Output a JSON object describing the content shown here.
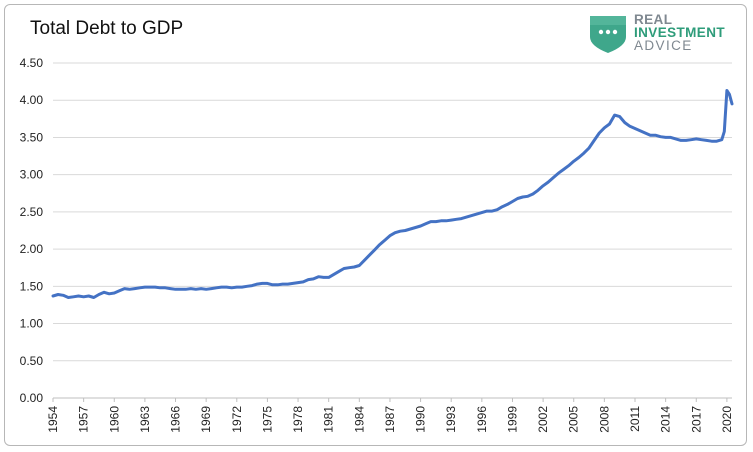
{
  "chart_data": {
    "type": "line",
    "title": "Total Debt to GDP",
    "xlabel": "",
    "ylabel": "",
    "ylim": [
      0,
      4.5
    ],
    "xlim": [
      1954,
      2020.5
    ],
    "grid": true,
    "legend": "none",
    "line_color": "#4472c4",
    "y_ticks": [
      "0.00",
      "0.50",
      "1.00",
      "1.50",
      "2.00",
      "2.50",
      "3.00",
      "3.50",
      "4.00",
      "4.50"
    ],
    "x_ticks": [
      "1954",
      "1957",
      "1960",
      "1963",
      "1966",
      "1969",
      "1972",
      "1975",
      "1978",
      "1981",
      "1984",
      "1987",
      "1990",
      "1993",
      "1996",
      "1999",
      "2002",
      "2005",
      "2008",
      "2011",
      "2014",
      "2017",
      "2020"
    ],
    "series": [
      {
        "x": [
          1954,
          1954.5,
          1955,
          1955.5,
          1956,
          1956.5,
          1957,
          1957.5,
          1958,
          1958.5,
          1959,
          1959.5,
          1960,
          1960.5,
          1961,
          1961.5,
          1962,
          1962.5,
          1963,
          1963.5,
          1964,
          1964.5,
          1965,
          1965.5,
          1966,
          1966.5,
          1967,
          1967.5,
          1968,
          1968.5,
          1969,
          1969.5,
          1970,
          1970.5,
          1971,
          1971.5,
          1972,
          1972.5,
          1973,
          1973.5,
          1974,
          1974.5,
          1975,
          1975.5,
          1976,
          1976.5,
          1977,
          1977.5,
          1978,
          1978.5,
          1979,
          1979.5,
          1980,
          1980.5,
          1981,
          1981.5,
          1982,
          1982.5,
          1983,
          1983.5,
          1984,
          1984.5,
          1985,
          1985.5,
          1986,
          1986.5,
          1987,
          1987.5,
          1988,
          1988.5,
          1989,
          1989.5,
          1990,
          1990.5,
          1991,
          1991.5,
          1992,
          1992.5,
          1993,
          1993.5,
          1994,
          1994.5,
          1995,
          1995.5,
          1996,
          1996.5,
          1997,
          1997.5,
          1998,
          1998.5,
          1999,
          1999.5,
          2000,
          2000.5,
          2001,
          2001.5,
          2002,
          2002.5,
          2003,
          2003.5,
          2004,
          2004.5,
          2005,
          2005.5,
          2006,
          2006.5,
          2007,
          2007.5,
          2008,
          2008.5,
          2009,
          2009.5,
          2010,
          2010.5,
          2011,
          2011.5,
          2012,
          2012.5,
          2013,
          2013.5,
          2014,
          2014.5,
          2015,
          2015.5,
          2016,
          2016.5,
          2017,
          2017.5,
          2018,
          2018.5,
          2019,
          2019.5,
          2019.75,
          2020,
          2020.25,
          2020.5
        ],
        "y": [
          1.37,
          1.39,
          1.38,
          1.35,
          1.36,
          1.37,
          1.36,
          1.37,
          1.35,
          1.39,
          1.42,
          1.4,
          1.41,
          1.44,
          1.47,
          1.46,
          1.47,
          1.48,
          1.49,
          1.49,
          1.49,
          1.48,
          1.48,
          1.47,
          1.46,
          1.46,
          1.46,
          1.47,
          1.46,
          1.47,
          1.46,
          1.47,
          1.48,
          1.49,
          1.49,
          1.48,
          1.49,
          1.49,
          1.5,
          1.51,
          1.53,
          1.54,
          1.54,
          1.52,
          1.52,
          1.53,
          1.53,
          1.54,
          1.55,
          1.56,
          1.59,
          1.6,
          1.63,
          1.62,
          1.62,
          1.66,
          1.7,
          1.74,
          1.75,
          1.76,
          1.78,
          1.85,
          1.92,
          1.99,
          2.06,
          2.12,
          2.18,
          2.22,
          2.24,
          2.25,
          2.27,
          2.29,
          2.31,
          2.34,
          2.37,
          2.37,
          2.38,
          2.38,
          2.39,
          2.4,
          2.41,
          2.43,
          2.45,
          2.47,
          2.49,
          2.51,
          2.51,
          2.53,
          2.57,
          2.6,
          2.64,
          2.68,
          2.7,
          2.71,
          2.74,
          2.79,
          2.85,
          2.9,
          2.96,
          3.02,
          3.07,
          3.12,
          3.18,
          3.23,
          3.29,
          3.36,
          3.46,
          3.56,
          3.63,
          3.68,
          3.8,
          3.78,
          3.7,
          3.65,
          3.62,
          3.59,
          3.56,
          3.53,
          3.53,
          3.51,
          3.5,
          3.5,
          3.48,
          3.46,
          3.46,
          3.47,
          3.48,
          3.47,
          3.46,
          3.45,
          3.45,
          3.47,
          3.58,
          4.13,
          4.08,
          3.95
        ]
      }
    ]
  }
}
